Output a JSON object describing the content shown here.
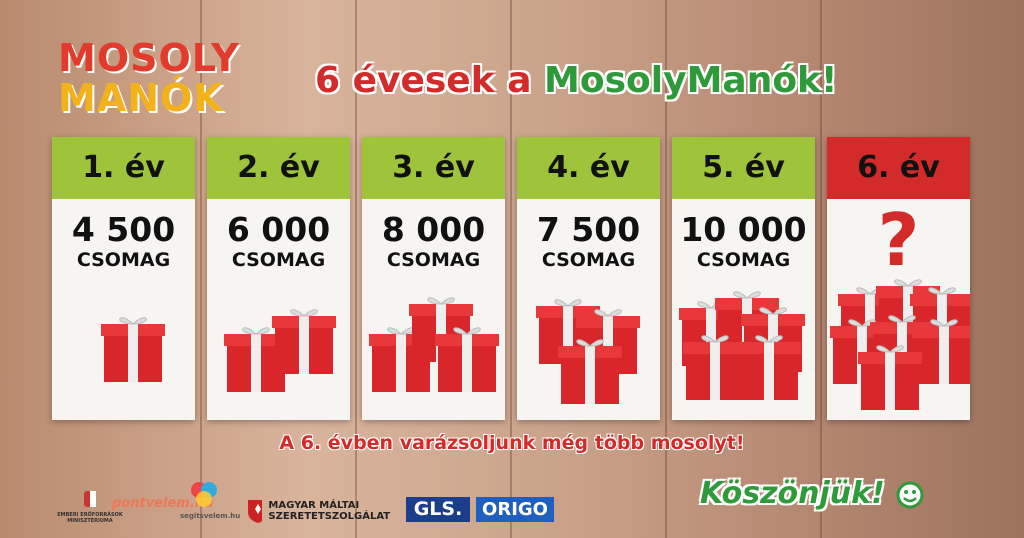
{
  "logo": {
    "line1": "MOSOLY",
    "line2": "MANÓK"
  },
  "title": {
    "part1": "6 évesek a",
    "part2": "MosolyManók!"
  },
  "cards": [
    {
      "year": "1. év",
      "amount": "4 500",
      "unit": "CSOMAG"
    },
    {
      "year": "2. év",
      "amount": "6 000",
      "unit": "CSOMAG"
    },
    {
      "year": "3. év",
      "amount": "8 000",
      "unit": "CSOMAG"
    },
    {
      "year": "4. év",
      "amount": "7 500",
      "unit": "CSOMAG"
    },
    {
      "year": "5. év",
      "amount": "10 000",
      "unit": "CSOMAG"
    },
    {
      "year": "6. év",
      "amount": "?"
    }
  ],
  "slogan": "A 6. évben varázsoljunk még több mosolyt!",
  "thanks": "Köszönjük!",
  "sponsors": {
    "ministry": "EMBERI ERŐFORRÁSOK MINISZTÉRIUMA",
    "pontvelem": "pontvelem.hu",
    "segitsvelem": "segitsvelem.hu",
    "maltai": "MAGYAR MÁLTAI SZERETETSZOLGÁLAT",
    "gls": "GLS.",
    "origo": "ORIGO"
  }
}
